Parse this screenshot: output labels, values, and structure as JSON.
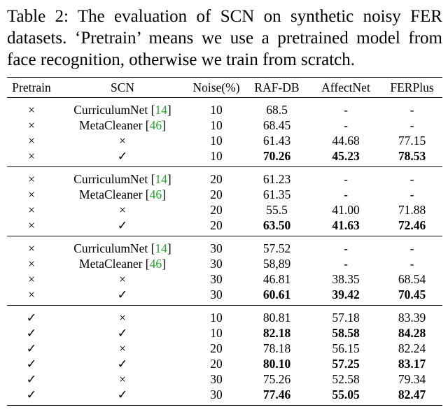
{
  "caption": "Table 2: The evaluation of SCN on synthetic noisy FER datasets. ‘Pretrain’ means we use a pretrained model from face recognition, otherwise we train from scratch.",
  "headers": [
    "Pretrain",
    "SCN",
    "Noise(%)",
    "RAF-DB",
    "AffectNet",
    "FERPlus"
  ],
  "groups": [
    [
      {
        "pretrain": "×",
        "scn": "CurriculumNet",
        "ref": "14",
        "noise": "10",
        "raf": "68.5",
        "aff": "-",
        "fer": "-",
        "bold": false
      },
      {
        "pretrain": "×",
        "scn": "MetaCleaner",
        "ref": "46",
        "noise": "10",
        "raf": "68.45",
        "aff": "-",
        "fer": "-",
        "bold": false
      },
      {
        "pretrain": "×",
        "scn": "×",
        "ref": "",
        "noise": "10",
        "raf": "61.43",
        "aff": "44.68",
        "fer": "77.15",
        "bold": false
      },
      {
        "pretrain": "×",
        "scn": "✓",
        "ref": "",
        "noise": "10",
        "raf": "70.26",
        "aff": "45.23",
        "fer": "78.53",
        "bold": true
      }
    ],
    [
      {
        "pretrain": "×",
        "scn": "CurriculumNet",
        "ref": "14",
        "noise": "20",
        "raf": "61.23",
        "aff": "-",
        "fer": "-",
        "bold": false
      },
      {
        "pretrain": "×",
        "scn": "MetaCleaner",
        "ref": "46",
        "noise": "20",
        "raf": "61.35",
        "aff": "-",
        "fer": "-",
        "bold": false
      },
      {
        "pretrain": "×",
        "scn": "×",
        "ref": "",
        "noise": "20",
        "raf": "55.5",
        "aff": "41.00",
        "fer": "71.88",
        "bold": false
      },
      {
        "pretrain": "×",
        "scn": "✓",
        "ref": "",
        "noise": "20",
        "raf": "63.50",
        "aff": "41.63",
        "fer": "72.46",
        "bold": true
      }
    ],
    [
      {
        "pretrain": "×",
        "scn": "CurriculumNet",
        "ref": "14",
        "noise": "30",
        "raf": "57.52",
        "aff": "-",
        "fer": "-",
        "bold": false
      },
      {
        "pretrain": "×",
        "scn": "MetaCleaner",
        "ref": "46",
        "noise": "30",
        "raf": "58,89",
        "aff": "-",
        "fer": "-",
        "bold": false
      },
      {
        "pretrain": "×",
        "scn": "×",
        "ref": "",
        "noise": "30",
        "raf": "46.81",
        "aff": "38.35",
        "fer": "68.54",
        "bold": false
      },
      {
        "pretrain": "×",
        "scn": "✓",
        "ref": "",
        "noise": "30",
        "raf": "60.61",
        "aff": "39.42",
        "fer": "70.45",
        "bold": true
      }
    ],
    [
      {
        "pretrain": "✓",
        "scn": "×",
        "ref": "",
        "noise": "10",
        "raf": "80.81",
        "aff": "57.18",
        "fer": "83.39",
        "bold": false
      },
      {
        "pretrain": "✓",
        "scn": "✓",
        "ref": "",
        "noise": "10",
        "raf": "82.18",
        "aff": "58.58",
        "fer": "84.28",
        "bold": true
      },
      {
        "pretrain": "✓",
        "scn": "×",
        "ref": "",
        "noise": "20",
        "raf": "78.18",
        "aff": "56.15",
        "fer": "82.24",
        "bold": false
      },
      {
        "pretrain": "✓",
        "scn": "✓",
        "ref": "",
        "noise": "20",
        "raf": "80.10",
        "aff": "57.25",
        "fer": "83.17",
        "bold": true
      },
      {
        "pretrain": "✓",
        "scn": "×",
        "ref": "",
        "noise": "30",
        "raf": "75.26",
        "aff": "52.58",
        "fer": "79.34",
        "bold": false
      },
      {
        "pretrain": "✓",
        "scn": "✓",
        "ref": "",
        "noise": "30",
        "raf": "77.46",
        "aff": "55.05",
        "fer": "82.47",
        "bold": true
      }
    ]
  ]
}
